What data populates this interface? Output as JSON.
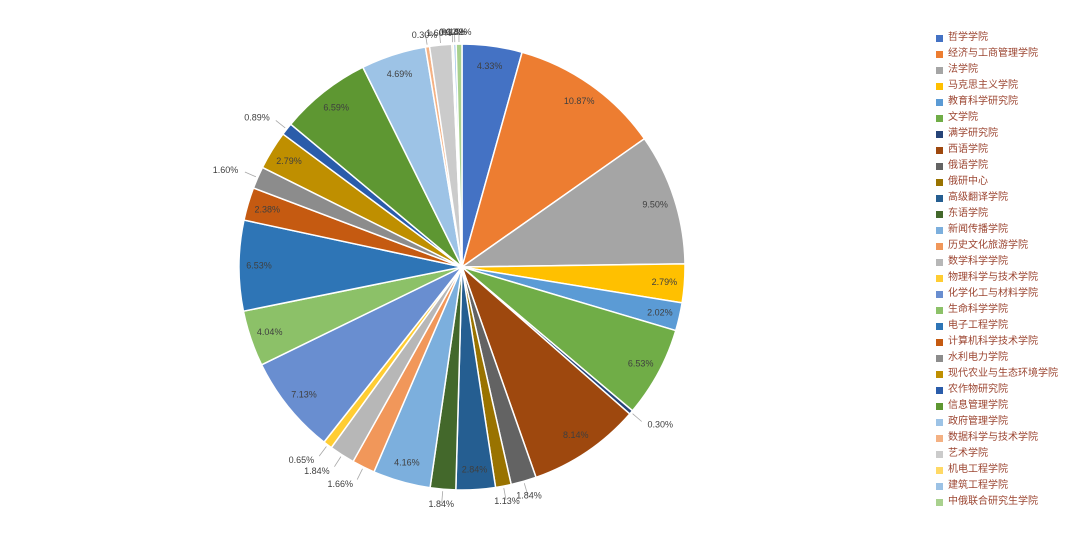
{
  "background": "#FFFFFF",
  "chart_data": {
    "type": "pie",
    "legend_position": "right",
    "start_angle_deg": 0,
    "direction": "clockwise",
    "labels_format": "percent",
    "label_color": "#3F3F3F",
    "leader_line_color": "#A6A6A6",
    "legend_text_color": "#9C4632",
    "series": [
      {
        "label": "哲学学院",
        "value": 4.33,
        "display": "4.33%",
        "color": "#4472C4"
      },
      {
        "label": "经济与工商管理学院",
        "value": 10.87,
        "display": "10.87%",
        "color": "#ED7D31"
      },
      {
        "label": "法学院",
        "value": 9.5,
        "display": "9.50%",
        "color": "#A5A5A5"
      },
      {
        "label": "马克思主义学院",
        "value": 2.79,
        "display": "2.79%",
        "color": "#FFC000"
      },
      {
        "label": "教育科学研究院",
        "value": 2.02,
        "display": "2.02%",
        "color": "#5B9BD5"
      },
      {
        "label": "文学院",
        "value": 6.53,
        "display": "6.53%",
        "color": "#70AD47"
      },
      {
        "label": "满学研究院",
        "value": 0.3,
        "display": "0.30%",
        "color": "#264478"
      },
      {
        "label": "西语学院",
        "value": 8.14,
        "display": "8.14%",
        "color": "#9E480E"
      },
      {
        "label": "俄语学院",
        "value": 1.84,
        "display": "1.84%",
        "color": "#636363"
      },
      {
        "label": "俄研中心",
        "value": 1.13,
        "display": "1.13%",
        "color": "#997300"
      },
      {
        "label": "高级翻译学院",
        "value": 2.84,
        "display": "2.84%",
        "color": "#255E91"
      },
      {
        "label": "东语学院",
        "value": 1.84,
        "display": "1.84%",
        "color": "#43682B"
      },
      {
        "label": "新闻传播学院",
        "value": 4.16,
        "display": "4.16%",
        "color": "#7CAFDD"
      },
      {
        "label": "历史文化旅游学院",
        "value": 1.66,
        "display": "1.66%",
        "color": "#F1975A"
      },
      {
        "label": "数学科学学院",
        "value": 1.84,
        "display": "1.84%",
        "color": "#B7B7B7"
      },
      {
        "label": "物理科学与技术学院",
        "value": 0.65,
        "display": "0.65%",
        "color": "#FFCD33"
      },
      {
        "label": "化学化工与材料学院",
        "value": 7.13,
        "display": "7.13%",
        "color": "#698ED0"
      },
      {
        "label": "生命科学学院",
        "value": 4.04,
        "display": "4.04%",
        "color": "#8CC168"
      },
      {
        "label": "电子工程学院",
        "value": 6.53,
        "display": "6.53%",
        "color": "#2E75B6"
      },
      {
        "label": "计算机科学技术学院",
        "value": 2.38,
        "display": "2.38%",
        "color": "#C55A11"
      },
      {
        "label": "水利电力学院",
        "value": 1.6,
        "display": "1.60%",
        "color": "#8C8C8C"
      },
      {
        "label": "现代农业与生态环境学院",
        "value": 2.79,
        "display": "2.79%",
        "color": "#BF8F00"
      },
      {
        "label": "农作物研究院",
        "value": 0.89,
        "display": "0.89%",
        "color": "#2A5CAA"
      },
      {
        "label": "信息管理学院",
        "value": 6.59,
        "display": "6.59%",
        "color": "#5E9732"
      },
      {
        "label": "政府管理学院",
        "value": 4.69,
        "display": "4.69%",
        "color": "#9DC3E6"
      },
      {
        "label": "数据科学与技术学院",
        "value": 0.3,
        "display": "0.30%",
        "color": "#F4B183"
      },
      {
        "label": "艺术学院",
        "value": 1.6,
        "display": "1.60%",
        "color": "#CBCBCB"
      },
      {
        "label": "机电工程学院",
        "value": 0.12,
        "display": "0.12%",
        "color": "#FFD965"
      },
      {
        "label": "建筑工程学院",
        "value": 0.18,
        "display": "0.18%",
        "color": "#9CC2E5"
      },
      {
        "label": "中俄联合研究生学院",
        "value": 0.42,
        "display": "0.42%",
        "color": "#A9D18E"
      }
    ]
  }
}
